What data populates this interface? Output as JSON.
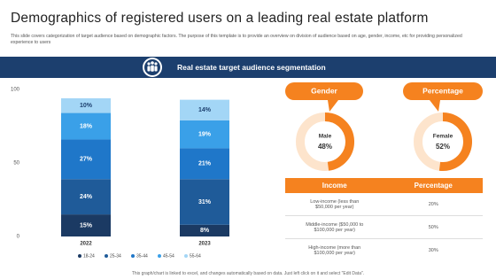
{
  "header": {
    "title": "Demographics of registered users on a leading real estate platform",
    "subtitle": "This slide covers categorization of target audience based on demographic factors. The purpose of this template is to provide an overview on division of audience based on age, gender, income, etc for providing personalized experience to users"
  },
  "banner": "Real estate target audience segmentation",
  "panels": {
    "gender_heading": "Gender",
    "percentage_heading": "Percentage"
  },
  "chart_data": [
    {
      "type": "stacked_bar",
      "categories": [
        "2022",
        "2023"
      ],
      "ylim": [
        0,
        100
      ],
      "yticks": [
        0,
        50,
        100
      ],
      "series": [
        {
          "name": "18-24",
          "color": "#1b3a63",
          "values": [
            15,
            8
          ],
          "value_labels": [
            "15%",
            "8%"
          ]
        },
        {
          "name": "25-34",
          "color": "#1f5b99",
          "values": [
            24,
            31
          ],
          "value_labels": [
            "24%",
            "31%"
          ]
        },
        {
          "name": "35-44",
          "color": "#1f77c9",
          "values": [
            27,
            21
          ],
          "value_labels": [
            "27%",
            "21%"
          ]
        },
        {
          "name": "45-54",
          "color": "#3aa0e8",
          "values": [
            18,
            19
          ],
          "value_labels": [
            "18%",
            "19%"
          ]
        },
        {
          "name": "55-64",
          "color": "#a3d6f6",
          "values": [
            10,
            14
          ],
          "value_labels": [
            "10%",
            "14%"
          ]
        }
      ]
    },
    {
      "type": "donut",
      "title": "Male",
      "values": [
        48
      ],
      "value_labels": [
        "48%"
      ],
      "color": "#f5821f",
      "track_color": "#fde4cc"
    },
    {
      "type": "donut",
      "title": "Female",
      "values": [
        52
      ],
      "value_labels": [
        "52%"
      ],
      "color": "#f5821f",
      "track_color": "#fde4cc"
    }
  ],
  "table": {
    "header": [
      "Income",
      "Percentage"
    ],
    "rows": [
      [
        "Low-income (less than $50,000 per year)",
        "20%"
      ],
      [
        "Middle-income ($50,000 to $100,000 per year)",
        "50%"
      ],
      [
        "High-income (more than $100,000 per year)",
        "30%"
      ]
    ]
  },
  "footer": "This graph/chart is linked to excel, and changes automatically based on data. Just left click on it and select \"Edit Data\"."
}
